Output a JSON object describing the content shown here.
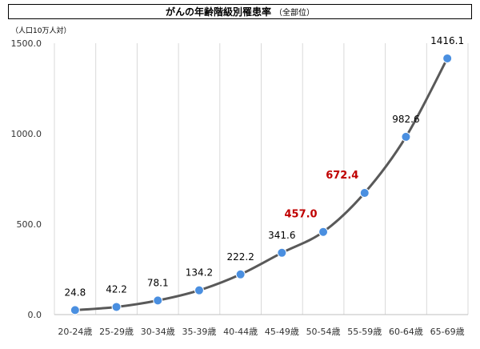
{
  "title": {
    "main": "がんの年齢階級別罹患率",
    "sub": "（全部位）"
  },
  "unit_label": "（人口10万人対）",
  "chart_data": {
    "type": "line",
    "categories": [
      "20-24歳",
      "25-29歳",
      "30-34歳",
      "35-39歳",
      "40-44歳",
      "45-49歳",
      "50-54歳",
      "55-59歳",
      "60-64歳",
      "65-69歳"
    ],
    "series": [
      {
        "values": [
          24.8,
          42.2,
          78.1,
          134.2,
          222.2,
          341.6,
          457.0,
          672.4,
          982.6,
          1416.1
        ]
      }
    ],
    "data_labels": [
      "24.8",
      "42.2",
      "78.1",
      "134.2",
      "222.2",
      "341.6",
      "457.0",
      "672.4",
      "982.6",
      "1416.1"
    ],
    "highlighted_indices": [
      6,
      7
    ],
    "ylim": [
      0,
      1500
    ],
    "yticks": [
      0,
      500,
      1000,
      1500
    ],
    "ytick_labels": [
      "0.0",
      "500.0",
      "1000.0",
      "1500.0"
    ],
    "grid": "vertical",
    "colors": {
      "line": "#595959",
      "marker": "#4a8fe0",
      "highlight_label": "#c00000",
      "grid": "#d9d9d9"
    }
  }
}
